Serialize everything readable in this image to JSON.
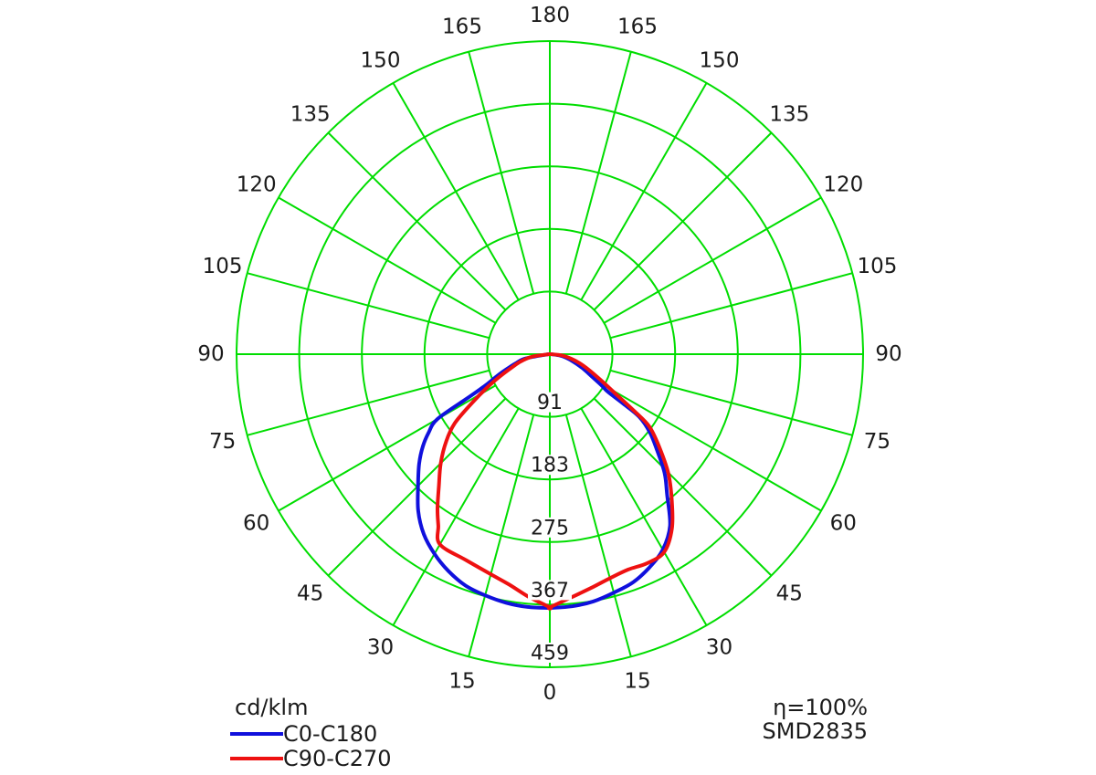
{
  "chart_data": {
    "type": "polar",
    "subtype": "photometric-intensity-distribution",
    "units": "cd/klm",
    "angle_ticks_deg": [
      0,
      15,
      30,
      45,
      60,
      75,
      90,
      105,
      120,
      135,
      150,
      165,
      180
    ],
    "mirrored_labels": true,
    "ring_values": [
      91,
      183,
      275,
      367,
      459
    ],
    "r_max": 459,
    "grid_on": true,
    "grid_color": "#00dd00",
    "text_color": "#1b1b1b",
    "background": "#ffffff",
    "series": [
      {
        "name": "C0-C180",
        "color": "#1010dd",
        "left": [
          [
            90,
            2
          ],
          [
            80,
            36
          ],
          [
            75,
            52
          ],
          [
            72,
            62
          ],
          [
            69,
            76
          ],
          [
            66,
            92
          ],
          [
            64,
            106
          ],
          [
            62,
            135
          ],
          [
            60,
            190
          ],
          [
            57,
            212
          ],
          [
            54,
            230
          ],
          [
            50,
            250
          ],
          [
            45,
            273
          ],
          [
            40,
            300
          ],
          [
            35,
            322
          ],
          [
            30,
            338
          ],
          [
            25,
            351
          ],
          [
            20,
            361
          ],
          [
            15,
            366
          ],
          [
            10,
            370
          ],
          [
            5,
            372
          ],
          [
            0,
            372
          ]
        ],
        "right": [
          [
            90,
            2
          ],
          [
            82,
            16
          ],
          [
            76,
            28
          ],
          [
            70,
            42
          ],
          [
            66,
            55
          ],
          [
            62,
            70
          ],
          [
            59,
            88
          ],
          [
            57,
            102
          ],
          [
            56,
            130
          ],
          [
            55,
            160
          ],
          [
            52,
            186
          ],
          [
            48,
            212
          ],
          [
            44,
            242
          ],
          [
            40,
            267
          ],
          [
            35,
            307
          ],
          [
            30,
            331
          ],
          [
            25,
            345
          ],
          [
            20,
            356
          ],
          [
            15,
            362
          ],
          [
            10,
            368
          ],
          [
            5,
            371
          ],
          [
            0,
            372
          ]
        ]
      },
      {
        "name": "C90-C270",
        "color": "#ee1111",
        "left": [
          [
            90,
            1
          ],
          [
            82,
            26
          ],
          [
            76,
            44
          ],
          [
            71,
            58
          ],
          [
            66,
            80
          ],
          [
            62,
            104
          ],
          [
            58,
            134
          ],
          [
            54,
            172
          ],
          [
            50,
            198
          ],
          [
            45,
            226
          ],
          [
            40,
            253
          ],
          [
            36,
            280
          ],
          [
            33,
            300
          ],
          [
            30,
            322
          ],
          [
            22,
            326
          ],
          [
            15,
            334
          ],
          [
            10,
            343
          ],
          [
            5,
            357
          ],
          [
            0,
            371
          ]
        ],
        "right": [
          [
            90,
            1
          ],
          [
            84,
            18
          ],
          [
            78,
            32
          ],
          [
            73,
            46
          ],
          [
            68,
            62
          ],
          [
            63,
            84
          ],
          [
            59,
            112
          ],
          [
            56,
            150
          ],
          [
            54,
            180
          ],
          [
            50,
            208
          ],
          [
            45,
            245
          ],
          [
            40,
            278
          ],
          [
            35,
            312
          ],
          [
            30,
            335
          ],
          [
            25,
            338
          ],
          [
            20,
            336
          ],
          [
            15,
            340
          ],
          [
            10,
            348
          ],
          [
            5,
            358
          ],
          [
            0,
            371
          ]
        ]
      }
    ]
  },
  "legend": {
    "units": "cd/klm",
    "items": [
      {
        "label": "C0-C180",
        "color": "#1010dd"
      },
      {
        "label": "C90-C270",
        "color": "#ee1111"
      }
    ]
  },
  "annotations": {
    "efficiency": "η=100%",
    "model": "SMD2835"
  }
}
